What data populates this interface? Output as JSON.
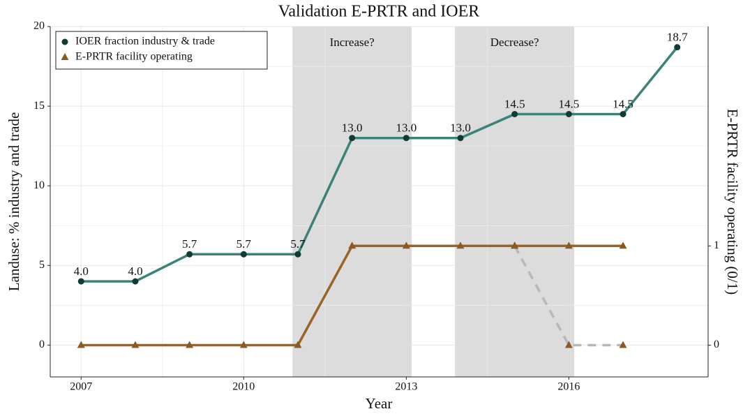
{
  "chart_data": {
    "type": "line",
    "title": "Validation E-PRTR and IOER",
    "x_label": "Year",
    "y_label": "Landuse: % industry and trade",
    "y2_label": "E-PRTR facility operating (0/1)",
    "xlim": [
      2006.43,
      2018.57
    ],
    "xticks": [
      2007,
      2010,
      2013,
      2016
    ],
    "ylim": [
      -2,
      20
    ],
    "yticks": [
      0,
      5,
      10,
      15,
      20
    ],
    "y2lim": [
      -0.32,
      3.21
    ],
    "y2ticks": [
      0,
      1
    ],
    "grid": true,
    "legend": "top-left",
    "shaded_regions": [
      {
        "xlim": [
          2010.9,
          2013.1
        ],
        "label": "Increase?",
        "color": "#dcdcdc"
      },
      {
        "xlim": [
          2013.9,
          2016.1
        ],
        "label": "Decrease?",
        "color": "#dcdcdc"
      }
    ],
    "series": [
      {
        "name": "IOER fraction industry & trade",
        "color": "#3b8279",
        "marker": "circle",
        "marker_color": "#0f3d34",
        "x": [
          2007,
          2008,
          2009,
          2010,
          2011,
          2012,
          2013,
          2014,
          2015,
          2016,
          2017,
          2018
        ],
        "values": [
          4.0,
          4.0,
          5.7,
          5.7,
          5.7,
          13.0,
          13.0,
          13.0,
          14.5,
          14.5,
          14.5,
          18.7
        ],
        "value_labels": [
          "4.0",
          "4.0",
          "5.7",
          "5.7",
          "5.7",
          "13.0",
          "13.0",
          "13.0",
          "14.5",
          "14.5",
          "14.5",
          "18.7"
        ]
      },
      {
        "name": "E-PRTR facility operating",
        "color": "#9a6328",
        "marker": "triangle",
        "marker_color": "#8b5a22",
        "axis": "y2",
        "x": [
          2007,
          2008,
          2009,
          2010,
          2011,
          2012,
          2013,
          2014,
          2015,
          2016,
          2017
        ],
        "values": [
          0,
          0,
          0,
          0,
          0,
          1,
          1,
          1,
          1,
          1,
          1
        ]
      },
      {
        "color": "#b8b8b8",
        "dashed": true,
        "marker": "triangle",
        "marker_color": "#8b5a22",
        "axis": "y2",
        "x": [
          2015,
          2016,
          2017
        ],
        "values": [
          1,
          0,
          0
        ]
      }
    ]
  }
}
